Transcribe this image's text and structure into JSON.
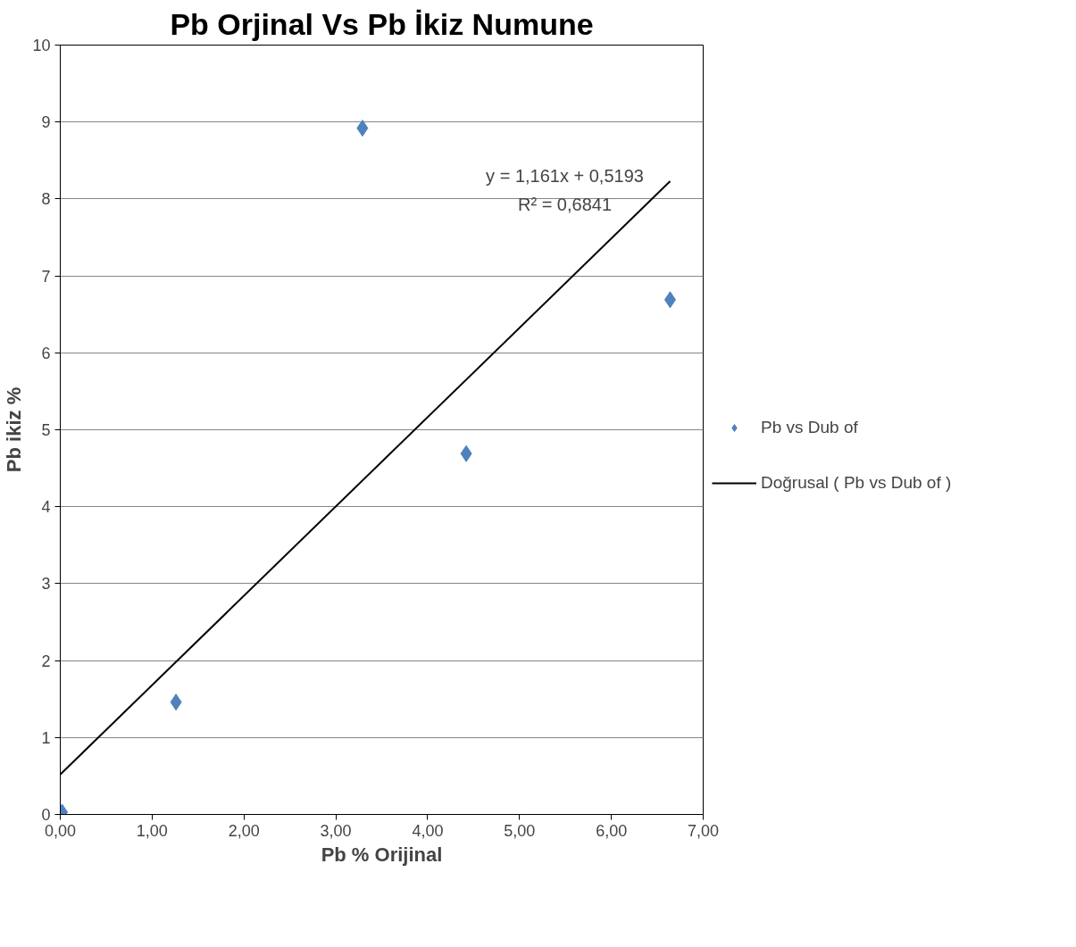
{
  "chart_data": {
    "type": "scatter",
    "title": "Pb Orjinal Vs Pb İkiz Numune",
    "xlabel": "Pb % Orijinal",
    "ylabel": "Pb ikiz %",
    "x": [
      0.02,
      1.26,
      3.29,
      4.42,
      6.64
    ],
    "series": [
      {
        "name": "Pb vs Dub of",
        "color": "#4f81bd",
        "values": [
          0.03,
          1.46,
          8.92,
          4.69,
          6.69
        ],
        "marker": "diamond"
      },
      {
        "name": "Doğrusal ( Pb vs Dub of )",
        "type": "line",
        "color": "#000000",
        "x": [
          0.0,
          6.64
        ],
        "values": [
          0.52,
          8.23
        ],
        "line_style": "solid",
        "marker": "none"
      }
    ],
    "xlim": [
      0,
      7
    ],
    "ylim": [
      0,
      10
    ],
    "xticks": [
      {
        "value": 0,
        "label": "0,00"
      },
      {
        "value": 1,
        "label": "1,00"
      },
      {
        "value": 2,
        "label": "2,00"
      },
      {
        "value": 3,
        "label": "3,00"
      },
      {
        "value": 4,
        "label": "4,00"
      },
      {
        "value": 5,
        "label": "5,00"
      },
      {
        "value": 6,
        "label": "6,00"
      },
      {
        "value": 7,
        "label": "7,00"
      }
    ],
    "yticks": [
      0,
      1,
      2,
      3,
      4,
      5,
      6,
      7,
      8,
      9,
      10
    ],
    "grid": "y",
    "legend": "right",
    "annotations": [
      "y = 1,161x + 0,5193",
      "R² = 0,6841"
    ]
  }
}
